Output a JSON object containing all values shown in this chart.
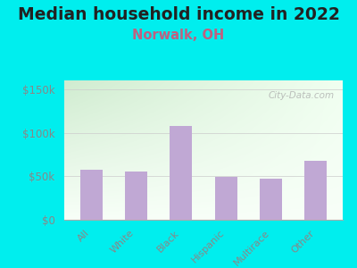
{
  "title": "Median household income in 2022",
  "subtitle": "Norwalk, OH",
  "categories": [
    "All",
    "White",
    "Black",
    "Hispanic",
    "Multirace",
    "Other"
  ],
  "values": [
    57000,
    55000,
    108000,
    49000,
    47000,
    68000
  ],
  "bar_color": "#c0a8d4",
  "background_outer": "#00eeee",
  "yticks": [
    0,
    50000,
    100000,
    150000
  ],
  "ytick_labels": [
    "$0",
    "$50k",
    "$100k",
    "$150k"
  ],
  "ylim": [
    0,
    160000
  ],
  "title_fontsize": 13.5,
  "subtitle_fontsize": 10.5,
  "subtitle_color": "#c06080",
  "tick_label_color": "#888888",
  "watermark": "City-Data.com",
  "grad_top_left": "#d0ecd0",
  "grad_top_right": "#e8f8f0",
  "grad_bottom": "#f8fff8"
}
